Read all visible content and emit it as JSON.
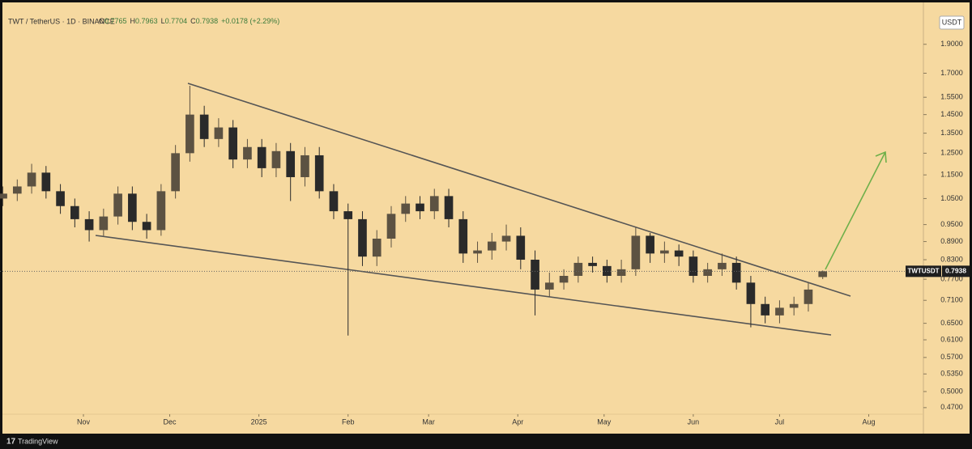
{
  "chart_data": {
    "type": "candlestick",
    "header": {
      "symbol": "TWT / TetherUS · 1D · BINANCE",
      "open_prefix": "O",
      "high_prefix": "H",
      "low_prefix": "L",
      "close_prefix": "C",
      "change": "+0.0178 (+2.29%)"
    },
    "currency": "USDT",
    "ticker": "TWTUSDT",
    "brand": "TradingView",
    "up_color": "#5c5242",
    "down_color": "#2a2a2a",
    "log_scale": true,
    "grid": false,
    "x": [
      -28,
      -23,
      -18,
      -13,
      -8,
      -3,
      2,
      7,
      12,
      17,
      22,
      27,
      32,
      37,
      42,
      47,
      52,
      57,
      62,
      67,
      72,
      77,
      82,
      87,
      92,
      97,
      102,
      107,
      112,
      117,
      122,
      127,
      132,
      137,
      142,
      147,
      152,
      157,
      162,
      167,
      172,
      177,
      182,
      187,
      192,
      197,
      202,
      207,
      212,
      217,
      222,
      227,
      232,
      237,
      242,
      247,
      252,
      257
    ],
    "open": [
      1.05,
      1.07,
      1.1,
      1.16,
      1.08,
      1.02,
      0.97,
      0.93,
      0.98,
      1.07,
      0.96,
      0.93,
      1.08,
      1.25,
      1.45,
      1.32,
      1.38,
      1.22,
      1.28,
      1.18,
      1.26,
      1.14,
      1.24,
      1.08,
      1.0,
      0.97,
      0.84,
      0.9,
      0.99,
      1.03,
      1.0,
      1.06,
      0.97,
      0.85,
      0.86,
      0.89,
      0.91,
      0.83,
      0.74,
      0.76,
      0.78,
      0.82,
      0.81,
      0.78,
      0.8,
      0.91,
      0.85,
      0.86,
      0.84,
      0.78,
      0.8,
      0.82,
      0.76,
      0.7,
      0.67,
      0.69,
      0.7,
      0.7765
    ],
    "high": [
      1.1,
      1.13,
      1.2,
      1.19,
      1.11,
      1.05,
      1.0,
      1.01,
      1.1,
      1.1,
      0.99,
      1.11,
      1.29,
      1.62,
      1.5,
      1.43,
      1.42,
      1.32,
      1.32,
      1.3,
      1.3,
      1.28,
      1.28,
      1.11,
      1.03,
      1.0,
      0.93,
      1.02,
      1.06,
      1.06,
      1.09,
      1.09,
      1.0,
      0.89,
      0.92,
      0.95,
      0.94,
      0.86,
      0.79,
      0.8,
      0.84,
      0.84,
      0.83,
      0.83,
      0.94,
      0.92,
      0.89,
      0.88,
      0.86,
      0.82,
      0.85,
      0.84,
      0.78,
      0.72,
      0.71,
      0.72,
      0.76,
      0.7963
    ],
    "low": [
      1.02,
      1.04,
      1.07,
      1.05,
      0.99,
      0.94,
      0.89,
      0.91,
      0.95,
      0.93,
      0.9,
      0.91,
      1.05,
      1.21,
      1.28,
      1.28,
      1.18,
      1.18,
      1.14,
      1.14,
      1.04,
      1.1,
      1.05,
      0.97,
      0.62,
      0.81,
      0.81,
      0.87,
      0.96,
      0.97,
      0.97,
      0.94,
      0.82,
      0.82,
      0.83,
      0.86,
      0.8,
      0.67,
      0.72,
      0.74,
      0.76,
      0.79,
      0.76,
      0.76,
      0.78,
      0.82,
      0.82,
      0.81,
      0.76,
      0.76,
      0.78,
      0.74,
      0.64,
      0.65,
      0.65,
      0.67,
      0.68,
      0.7704
    ],
    "close": [
      1.07,
      1.1,
      1.16,
      1.08,
      1.02,
      0.97,
      0.93,
      0.98,
      1.07,
      0.96,
      0.93,
      1.08,
      1.25,
      1.45,
      1.32,
      1.38,
      1.22,
      1.28,
      1.18,
      1.26,
      1.14,
      1.24,
      1.08,
      1.0,
      0.97,
      0.84,
      0.9,
      0.99,
      1.03,
      1.0,
      1.06,
      0.97,
      0.85,
      0.86,
      0.89,
      0.91,
      0.83,
      0.74,
      0.76,
      0.78,
      0.82,
      0.81,
      0.78,
      0.8,
      0.91,
      0.85,
      0.86,
      0.84,
      0.78,
      0.8,
      0.82,
      0.76,
      0.7,
      0.67,
      0.69,
      0.7,
      0.74,
      0.7938
    ],
    "xlim": [
      -29,
      292
    ],
    "xticks": [
      {
        "value": 0,
        "label": "Nov"
      },
      {
        "value": 30,
        "label": "Dec"
      },
      {
        "value": 61,
        "label": "2025"
      },
      {
        "value": 92,
        "label": "Feb"
      },
      {
        "value": 120,
        "label": "Mar"
      },
      {
        "value": 151,
        "label": "Apr"
      },
      {
        "value": 181,
        "label": "May"
      },
      {
        "value": 212,
        "label": "Jun"
      },
      {
        "value": 242,
        "label": "Jul"
      },
      {
        "value": 273,
        "label": "Aug"
      }
    ],
    "ylim": [
      0.447,
      2.13
    ],
    "yticks": [
      {
        "value": 1.9,
        "label": "1.9000"
      },
      {
        "value": 1.7,
        "label": "1.7000"
      },
      {
        "value": 1.55,
        "label": "1.5500"
      },
      {
        "value": 1.45,
        "label": "1.4500"
      },
      {
        "value": 1.35,
        "label": "1.3500"
      },
      {
        "value": 1.25,
        "label": "1.2500"
      },
      {
        "value": 1.15,
        "label": "1.1500"
      },
      {
        "value": 1.05,
        "label": "1.0500"
      },
      {
        "value": 0.95,
        "label": "0.9500"
      },
      {
        "value": 0.89,
        "label": "0.8900"
      },
      {
        "value": 0.83,
        "label": "0.8300"
      },
      {
        "value": 0.77,
        "label": "0.7700"
      },
      {
        "value": 0.71,
        "label": "0.7100"
      },
      {
        "value": 0.65,
        "label": "0.6500"
      },
      {
        "value": 0.61,
        "label": "0.6100"
      },
      {
        "value": 0.57,
        "label": "0.5700"
      },
      {
        "value": 0.535,
        "label": "0.5350"
      },
      {
        "value": 0.5,
        "label": "0.5000"
      },
      {
        "value": 0.47,
        "label": "0.4700"
      }
    ]
  }
}
